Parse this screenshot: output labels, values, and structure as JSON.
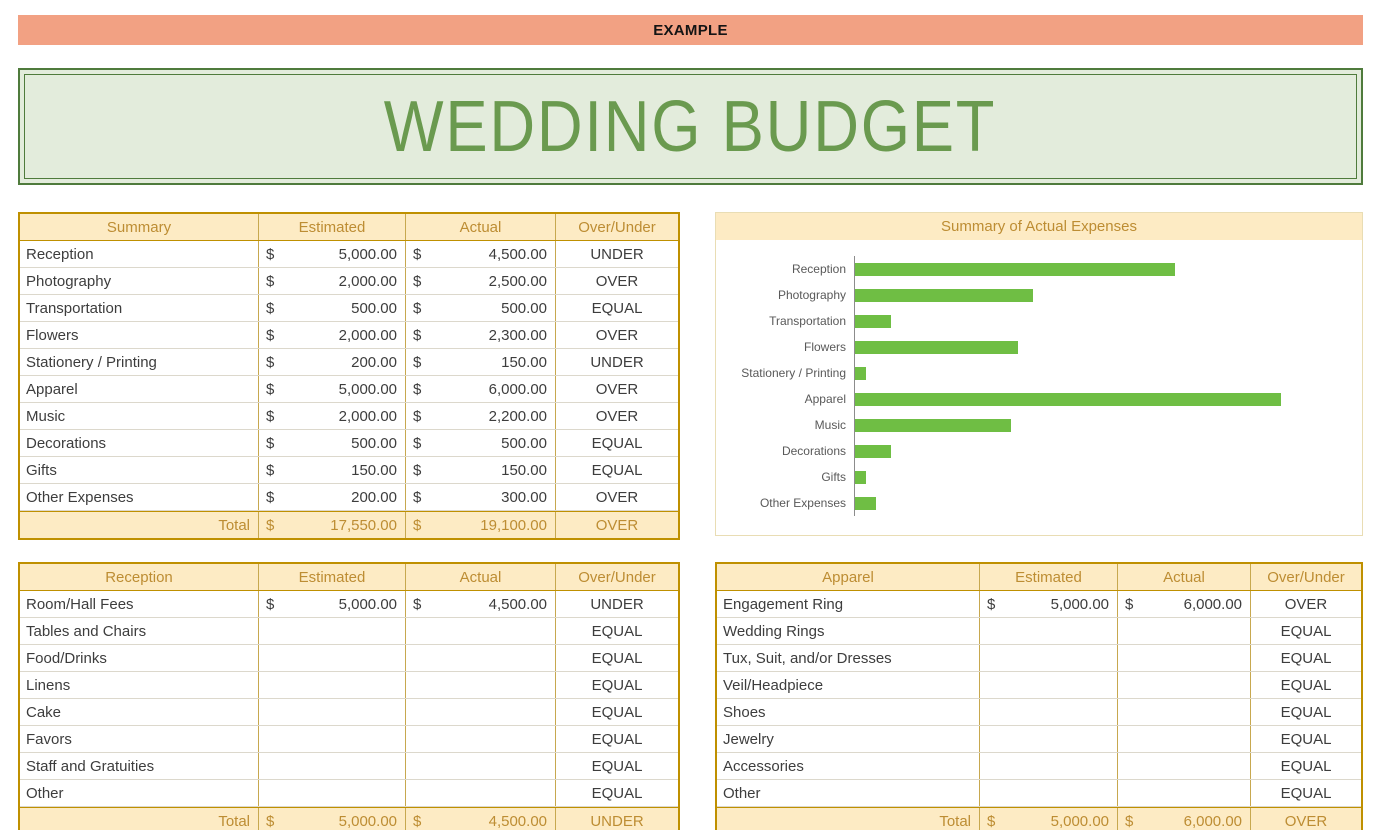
{
  "banner": {
    "label": "EXAMPLE"
  },
  "title": {
    "text": "WEDDING BUDGET"
  },
  "currency_symbol": "$",
  "colors": {
    "banner_bg": "#F2A183",
    "title_bg": "#E3ECDC",
    "title_border": "#4F7B3C",
    "title_text": "#6A9A4F",
    "table_border": "#BF9000",
    "header_bg": "#FDEBC4",
    "header_text": "#BD8D33",
    "bar_green": "#6FBE44"
  },
  "summary_table": {
    "headers": [
      "Summary",
      "Estimated",
      "Actual",
      "Over/Under"
    ],
    "rows": [
      {
        "label": "Reception",
        "estimated": "5,000.00",
        "actual": "4,500.00",
        "status": "UNDER"
      },
      {
        "label": "Photography",
        "estimated": "2,000.00",
        "actual": "2,500.00",
        "status": "OVER"
      },
      {
        "label": "Transportation",
        "estimated": "500.00",
        "actual": "500.00",
        "status": "EQUAL"
      },
      {
        "label": "Flowers",
        "estimated": "2,000.00",
        "actual": "2,300.00",
        "status": "OVER"
      },
      {
        "label": "Stationery / Printing",
        "estimated": "200.00",
        "actual": "150.00",
        "status": "UNDER"
      },
      {
        "label": "Apparel",
        "estimated": "5,000.00",
        "actual": "6,000.00",
        "status": "OVER"
      },
      {
        "label": "Music",
        "estimated": "2,000.00",
        "actual": "2,200.00",
        "status": "OVER"
      },
      {
        "label": "Decorations",
        "estimated": "500.00",
        "actual": "500.00",
        "status": "EQUAL"
      },
      {
        "label": "Gifts",
        "estimated": "150.00",
        "actual": "150.00",
        "status": "EQUAL"
      },
      {
        "label": "Other Expenses",
        "estimated": "200.00",
        "actual": "300.00",
        "status": "OVER"
      }
    ],
    "total": {
      "label": "Total",
      "estimated": "17,550.00",
      "actual": "19,100.00",
      "status": "OVER"
    }
  },
  "chart_data": {
    "type": "bar",
    "orientation": "horizontal",
    "title": "Summary of Actual Expenses",
    "categories": [
      "Reception",
      "Photography",
      "Transportation",
      "Flowers",
      "Stationery / Printing",
      "Apparel",
      "Music",
      "Decorations",
      "Gifts",
      "Other Expenses"
    ],
    "values": [
      4500,
      2500,
      500,
      2300,
      150,
      6000,
      2200,
      500,
      150,
      300
    ],
    "xlim": [
      0,
      6500
    ],
    "grid": false,
    "legend": false,
    "bar_color": "#6FBE44"
  },
  "reception_table": {
    "headers": [
      "Reception",
      "Estimated",
      "Actual",
      "Over/Under"
    ],
    "rows": [
      {
        "label": "Room/Hall Fees",
        "estimated": "5,000.00",
        "actual": "4,500.00",
        "status": "UNDER"
      },
      {
        "label": "Tables and Chairs",
        "estimated": "",
        "actual": "",
        "status": "EQUAL"
      },
      {
        "label": "Food/Drinks",
        "estimated": "",
        "actual": "",
        "status": "EQUAL"
      },
      {
        "label": "Linens",
        "estimated": "",
        "actual": "",
        "status": "EQUAL"
      },
      {
        "label": "Cake",
        "estimated": "",
        "actual": "",
        "status": "EQUAL"
      },
      {
        "label": "Favors",
        "estimated": "",
        "actual": "",
        "status": "EQUAL"
      },
      {
        "label": "Staff and Gratuities",
        "estimated": "",
        "actual": "",
        "status": "EQUAL"
      },
      {
        "label": "Other",
        "estimated": "",
        "actual": "",
        "status": "EQUAL"
      }
    ],
    "total": {
      "label": "Total",
      "estimated": "5,000.00",
      "actual": "4,500.00",
      "status": "UNDER"
    }
  },
  "apparel_table": {
    "headers": [
      "Apparel",
      "Estimated",
      "Actual",
      "Over/Under"
    ],
    "rows": [
      {
        "label": "Engagement Ring",
        "estimated": "5,000.00",
        "actual": "6,000.00",
        "status": "OVER"
      },
      {
        "label": "Wedding Rings",
        "estimated": "",
        "actual": "",
        "status": "EQUAL"
      },
      {
        "label": "Tux, Suit, and/or Dresses",
        "estimated": "",
        "actual": "",
        "status": "EQUAL"
      },
      {
        "label": "Veil/Headpiece",
        "estimated": "",
        "actual": "",
        "status": "EQUAL"
      },
      {
        "label": "Shoes",
        "estimated": "",
        "actual": "",
        "status": "EQUAL"
      },
      {
        "label": "Jewelry",
        "estimated": "",
        "actual": "",
        "status": "EQUAL"
      },
      {
        "label": "Accessories",
        "estimated": "",
        "actual": "",
        "status": "EQUAL"
      },
      {
        "label": "Other",
        "estimated": "",
        "actual": "",
        "status": "EQUAL"
      }
    ],
    "total": {
      "label": "Total",
      "estimated": "5,000.00",
      "actual": "6,000.00",
      "status": "OVER"
    }
  }
}
